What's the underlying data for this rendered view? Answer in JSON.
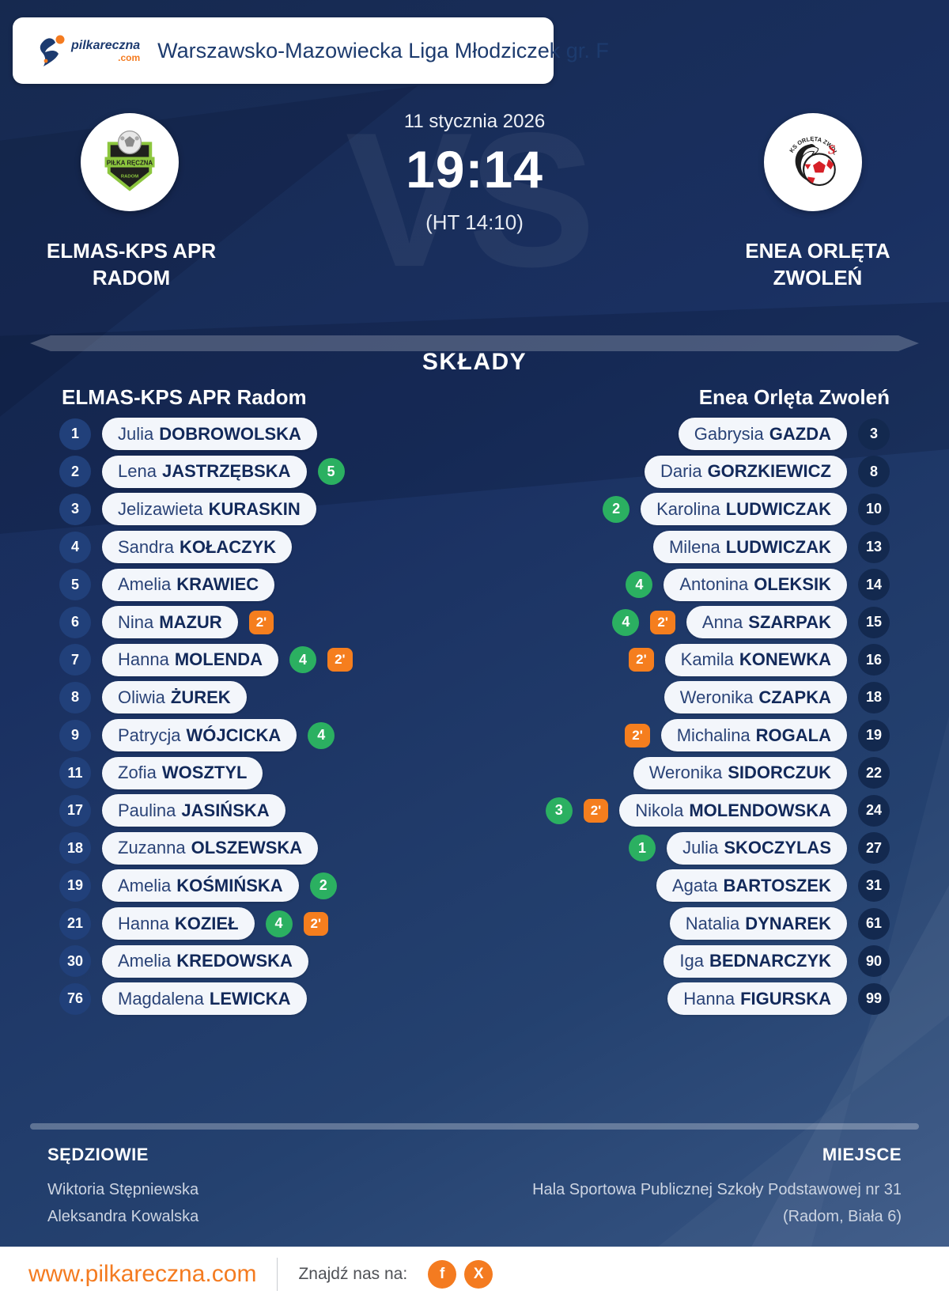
{
  "banner": {
    "logo_text": "pilkareczna",
    "logo_tld": ".com",
    "league_title": "Warszawsko-Mazowiecka Liga Młodziczek gr. F"
  },
  "match": {
    "date": "11 stycznia 2026",
    "score": "19:14",
    "halftime": "(HT 14:10)",
    "vs_watermark": "VS",
    "home_team": "ELMAS-KPS APR RADOM",
    "away_team": "ENEA ORLĘTA ZWOLEŃ"
  },
  "lineups": {
    "heading": "SKŁADY",
    "home_team_label": "ELMAS-KPS APR Radom",
    "away_team_label": "Enea Orlęta Zwoleń",
    "home_players": [
      {
        "number": "1",
        "first": "Julia",
        "last": "DOBROWOLSKA"
      },
      {
        "number": "2",
        "first": "Lena",
        "last": "JASTRZĘBSKA",
        "goals": "5"
      },
      {
        "number": "3",
        "first": "Jelizawieta",
        "last": "KURASKIN"
      },
      {
        "number": "4",
        "first": "Sandra",
        "last": "KOŁACZYK"
      },
      {
        "number": "5",
        "first": "Amelia",
        "last": "KRAWIEC"
      },
      {
        "number": "6",
        "first": "Nina",
        "last": "MAZUR",
        "penalty": "2'"
      },
      {
        "number": "7",
        "first": "Hanna",
        "last": "MOLENDA",
        "goals": "4",
        "penalty": "2'"
      },
      {
        "number": "8",
        "first": "Oliwia",
        "last": "ŻUREK"
      },
      {
        "number": "9",
        "first": "Patrycja",
        "last": "WÓJCICKA",
        "goals": "4"
      },
      {
        "number": "11",
        "first": "Zofia",
        "last": "WOSZTYL"
      },
      {
        "number": "17",
        "first": "Paulina",
        "last": "JASIŃSKA"
      },
      {
        "number": "18",
        "first": "Zuzanna",
        "last": "OLSZEWSKA"
      },
      {
        "number": "19",
        "first": "Amelia",
        "last": "KOŚMIŃSKA",
        "goals": "2"
      },
      {
        "number": "21",
        "first": "Hanna",
        "last": "KOZIEŁ",
        "goals": "4",
        "penalty": "2'"
      },
      {
        "number": "30",
        "first": "Amelia",
        "last": "KREDOWSKA"
      },
      {
        "number": "76",
        "first": "Magdalena",
        "last": "LEWICKA"
      }
    ],
    "away_players": [
      {
        "number": "3",
        "first": "Gabrysia",
        "last": "GAZDA"
      },
      {
        "number": "8",
        "first": "Daria",
        "last": "GORZKIEWICZ"
      },
      {
        "number": "10",
        "first": "Karolina",
        "last": "LUDWICZAK",
        "goals": "2"
      },
      {
        "number": "13",
        "first": "Milena",
        "last": "LUDWICZAK"
      },
      {
        "number": "14",
        "first": "Antonina",
        "last": "OLEKSIK",
        "goals": "4"
      },
      {
        "number": "15",
        "first": "Anna",
        "last": "SZARPAK",
        "goals": "4",
        "penalty": "2'"
      },
      {
        "number": "16",
        "first": "Kamila",
        "last": "KONEWKA",
        "penalty": "2'"
      },
      {
        "number": "18",
        "first": "Weronika",
        "last": "CZAPKA"
      },
      {
        "number": "19",
        "first": "Michalina",
        "last": "ROGALA",
        "penalty": "2'"
      },
      {
        "number": "22",
        "first": "Weronika",
        "last": "SIDORCZUK"
      },
      {
        "number": "24",
        "first": "Nikola",
        "last": "MOLENDOWSKA",
        "goals": "3",
        "penalty": "2'"
      },
      {
        "number": "27",
        "first": "Julia",
        "last": "SKOCZYLAS",
        "goals": "1"
      },
      {
        "number": "31",
        "first": "Agata",
        "last": "BARTOSZEK"
      },
      {
        "number": "61",
        "first": "Natalia",
        "last": "DYNAREK"
      },
      {
        "number": "90",
        "first": "Iga",
        "last": "BEDNARCZYK"
      },
      {
        "number": "99",
        "first": "Hanna",
        "last": "FIGURSKA"
      }
    ]
  },
  "footer_info": {
    "referees_label": "SĘDZIOWIE",
    "referees": [
      "Wiktoria Stępniewska",
      "Aleksandra Kowalska"
    ],
    "venue_label": "MIEJSCE",
    "venue": "Hala Sportowa Publicznej Szkoły Podstawowej nr 31 (Radom, Biała 6)"
  },
  "footer_bar": {
    "website": "www.pilkareczna.com",
    "find_us": "Znajdź nas na:",
    "social": [
      {
        "name": "facebook",
        "glyph": "f"
      },
      {
        "name": "x",
        "glyph": "X"
      }
    ]
  },
  "colors": {
    "accent_orange": "#f47b20",
    "goal_green": "#2bb061",
    "penalty_orange": "#f57e1e",
    "navy_dark": "#16305e",
    "pill_bg": "#f3f6fb"
  }
}
